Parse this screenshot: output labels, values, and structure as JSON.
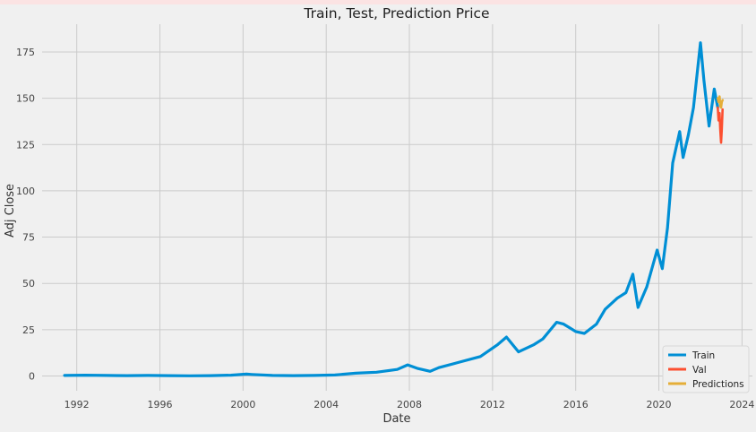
{
  "chart_data": {
    "type": "line",
    "title": "Train, Test, Prediction Price",
    "xlabel": "Date",
    "ylabel": "Adj Close",
    "xlim": [
      "1990-05-01",
      "2024-07-01"
    ],
    "ylim": [
      -8,
      190
    ],
    "x_ticks": [
      "1992",
      "1996",
      "2000",
      "2004",
      "2008",
      "2012",
      "2016",
      "2020",
      "2024"
    ],
    "y_ticks": [
      "0",
      "25",
      "50",
      "75",
      "100",
      "125",
      "150",
      "175"
    ],
    "grid": true,
    "legend_position": "bottom-right",
    "series": [
      {
        "name": "Train",
        "color": "#008fd5",
        "x": [
          "1991-06-01",
          "1992-06-01",
          "1993-06-01",
          "1994-06-01",
          "1995-06-01",
          "1996-06-01",
          "1997-06-01",
          "1998-06-01",
          "1999-06-01",
          "2000-03-01",
          "2000-06-01",
          "2001-06-01",
          "2002-06-01",
          "2003-06-01",
          "2004-06-01",
          "2005-06-01",
          "2006-06-01",
          "2007-06-01",
          "2007-12-01",
          "2008-06-01",
          "2009-01-01",
          "2009-06-01",
          "2010-06-01",
          "2011-06-01",
          "2012-04-01",
          "2012-09-01",
          "2013-04-01",
          "2014-01-01",
          "2014-06-01",
          "2015-02-01",
          "2015-06-01",
          "2016-01-01",
          "2016-06-01",
          "2017-01-01",
          "2017-06-01",
          "2018-01-01",
          "2018-06-01",
          "2018-10-01",
          "2019-01-01",
          "2019-06-01",
          "2019-12-01",
          "2020-03-01",
          "2020-06-01",
          "2020-09-01",
          "2021-01-01",
          "2021-03-01",
          "2021-06-01",
          "2021-09-01",
          "2022-01-01",
          "2022-03-01",
          "2022-06-01",
          "2022-09-01",
          "2022-11-01"
        ],
        "values": [
          0.3,
          0.4,
          0.3,
          0.2,
          0.3,
          0.2,
          0.1,
          0.2,
          0.4,
          1.0,
          0.8,
          0.3,
          0.2,
          0.3,
          0.5,
          1.5,
          2.0,
          3.5,
          6.0,
          4.0,
          2.5,
          4.5,
          7.5,
          10.5,
          17.0,
          21.0,
          13.0,
          17.0,
          20.0,
          29.0,
          28.0,
          24.0,
          23.0,
          28.0,
          36.0,
          42.0,
          45.0,
          55.0,
          37.0,
          48.0,
          68.0,
          58.0,
          80.0,
          115.0,
          132.0,
          118.0,
          130.0,
          145.0,
          180.0,
          160.0,
          135.0,
          155.0,
          145.0
        ]
      },
      {
        "name": "Val",
        "color": "#fc4f30",
        "x": [
          "2022-11-01",
          "2022-11-15",
          "2022-12-01",
          "2022-12-15",
          "2022-12-28",
          "2023-01-10",
          "2023-01-25"
        ],
        "values": [
          145.0,
          138.0,
          142.0,
          133.0,
          126.0,
          133.0,
          144.0
        ]
      },
      {
        "name": "Predictions",
        "color": "#e5ae38",
        "x": [
          "2022-11-01",
          "2022-11-15",
          "2022-12-01",
          "2022-12-15",
          "2022-12-28",
          "2023-01-10",
          "2023-01-25"
        ],
        "values": [
          150.0,
          148.0,
          151.0,
          146.0,
          145.0,
          148.0,
          149.0
        ]
      }
    ]
  }
}
